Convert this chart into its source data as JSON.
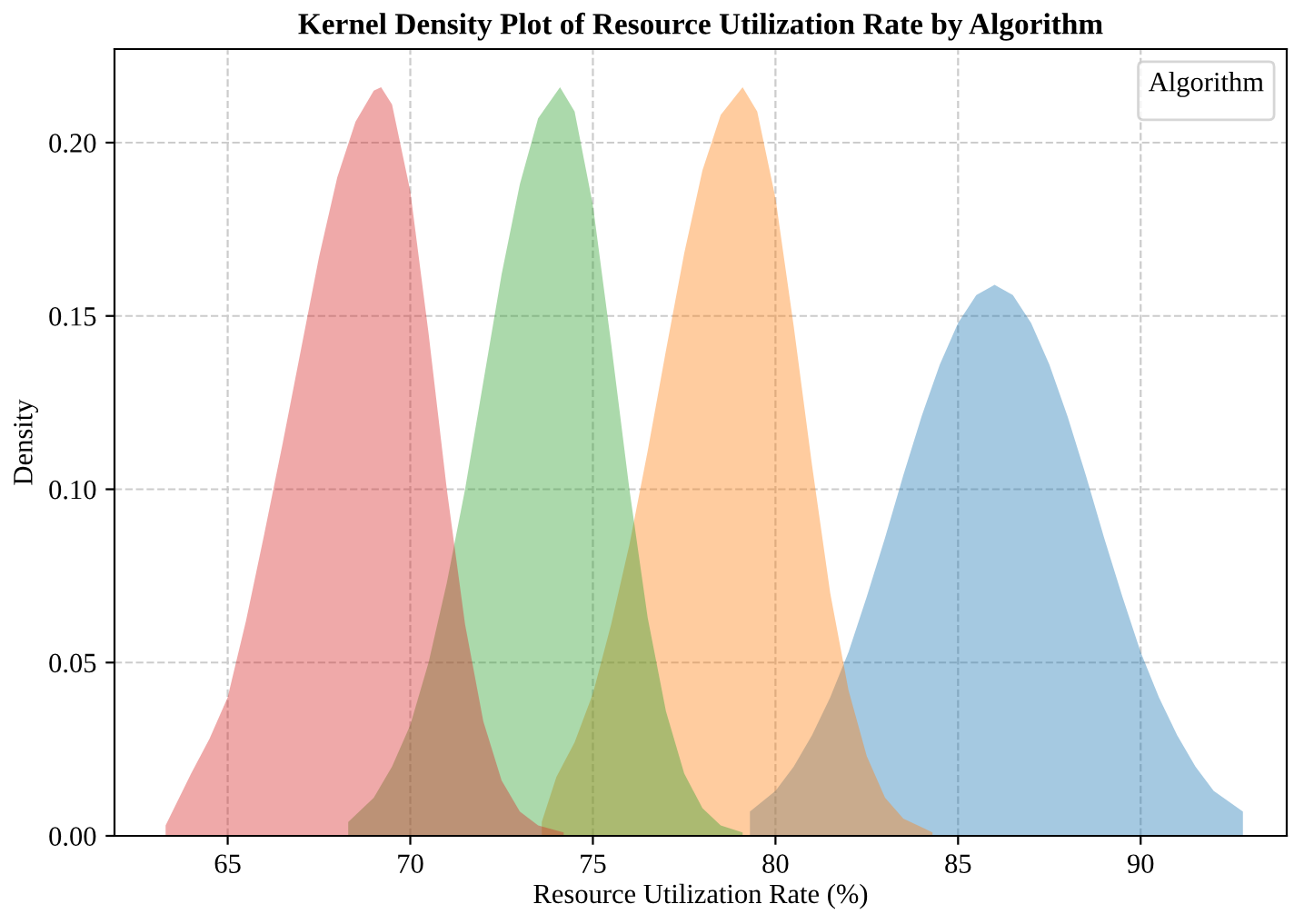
{
  "chart_data": {
    "type": "area",
    "title": "Kernel Density Plot of Resource Utilization Rate by Algorithm",
    "xlabel": "Resource Utilization Rate (%)",
    "ylabel": "Density",
    "legend_title": "Algorithm",
    "grid": true,
    "line_style": "dashed",
    "xlim": [
      61.9,
      94
    ],
    "xticks": [
      65,
      70,
      75,
      80,
      85,
      90
    ],
    "ylim": [
      0,
      0.227
    ],
    "yticks": [
      {
        "value": 0,
        "label": "0.00"
      },
      {
        "value": 0.05,
        "label": "0.05"
      },
      {
        "value": 0.1,
        "label": "0.10"
      },
      {
        "value": 0.15,
        "label": "0.15"
      },
      {
        "value": 0.2,
        "label": "0.20"
      }
    ],
    "series": [
      {
        "color": "#1f77b4",
        "x": [
          79.3,
          80,
          80.5,
          81,
          81.5,
          82,
          82.5,
          83,
          83.5,
          84,
          84.5,
          85,
          85.5,
          86,
          86.5,
          87,
          87.5,
          88,
          88.5,
          89,
          89.5,
          90,
          90.5,
          91,
          91.5,
          92,
          92.8
        ],
        "values": [
          0.007,
          0.013,
          0.02,
          0.029,
          0.04,
          0.053,
          0.069,
          0.086,
          0.104,
          0.121,
          0.136,
          0.148,
          0.156,
          0.159,
          0.156,
          0.148,
          0.136,
          0.121,
          0.104,
          0.086,
          0.069,
          0.053,
          0.04,
          0.029,
          0.02,
          0.013,
          0.007
        ]
      },
      {
        "color": "#ff7f0e",
        "x": [
          73.6,
          74,
          74.5,
          75,
          75.5,
          76,
          76.5,
          77,
          77.5,
          78,
          78.5,
          79.1,
          79.5,
          80,
          80.5,
          81,
          81.5,
          82,
          82.5,
          83,
          83.5,
          84.3
        ],
        "values": [
          0.004,
          0.017,
          0.027,
          0.041,
          0.061,
          0.084,
          0.111,
          0.14,
          0.168,
          0.192,
          0.208,
          0.216,
          0.209,
          0.184,
          0.147,
          0.107,
          0.07,
          0.042,
          0.023,
          0.011,
          0.005,
          0.001
        ]
      },
      {
        "color": "#2ca02c",
        "x": [
          68.3,
          69,
          69.5,
          70,
          70.5,
          71,
          71.5,
          72,
          72.5,
          73,
          73.5,
          74.1,
          74.5,
          75,
          75.5,
          76,
          76.5,
          77,
          77.5,
          78,
          78.5,
          79.1
        ],
        "values": [
          0.004,
          0.011,
          0.02,
          0.032,
          0.05,
          0.073,
          0.1,
          0.131,
          0.162,
          0.188,
          0.207,
          0.216,
          0.209,
          0.182,
          0.142,
          0.1,
          0.063,
          0.036,
          0.018,
          0.008,
          0.003,
          0.001
        ]
      },
      {
        "color": "#d62728",
        "x": [
          63.3,
          64,
          64.5,
          65,
          65.5,
          66,
          66.5,
          67,
          67.5,
          68,
          68.5,
          69,
          69.2,
          69.5,
          70,
          70.5,
          71,
          71.5,
          72,
          72.5,
          73,
          73.5,
          74.2
        ],
        "values": [
          0.003,
          0.018,
          0.028,
          0.04,
          0.062,
          0.087,
          0.113,
          0.14,
          0.167,
          0.19,
          0.206,
          0.215,
          0.216,
          0.211,
          0.186,
          0.145,
          0.1,
          0.061,
          0.033,
          0.016,
          0.007,
          0.003,
          0.001
        ]
      }
    ]
  }
}
